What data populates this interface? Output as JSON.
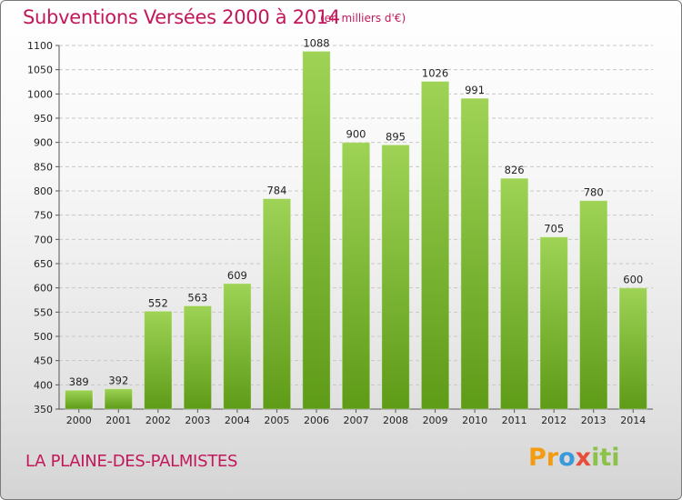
{
  "header": {
    "title": "Subventions Versées 2000 à 2014",
    "unit_note": "(en milliers d'€)"
  },
  "footer": {
    "commune": "LA PLAINE-DES-PALMISTES",
    "logo_text": "Proxiti"
  },
  "colors": {
    "accent": "#c2185b",
    "bar_top": "#9ed356",
    "bar_bottom": "#5e9b17"
  },
  "chart_data": {
    "type": "bar",
    "title": "Subventions Versées 2000 à 2014",
    "subtitle": "(en milliers d'€)",
    "xlabel": "",
    "ylabel": "",
    "categories": [
      "2000",
      "2001",
      "2002",
      "2003",
      "2004",
      "2005",
      "2006",
      "2007",
      "2008",
      "2009",
      "2010",
      "2011",
      "2012",
      "2013",
      "2014"
    ],
    "values": [
      389,
      392,
      552,
      563,
      609,
      784,
      1088,
      900,
      895,
      1026,
      991,
      826,
      705,
      780,
      600
    ],
    "ylim": [
      350,
      1100
    ],
    "yticks": [
      350,
      400,
      450,
      500,
      550,
      600,
      650,
      700,
      750,
      800,
      850,
      900,
      950,
      1000,
      1050,
      1100
    ],
    "grid": true,
    "legend": "none"
  }
}
